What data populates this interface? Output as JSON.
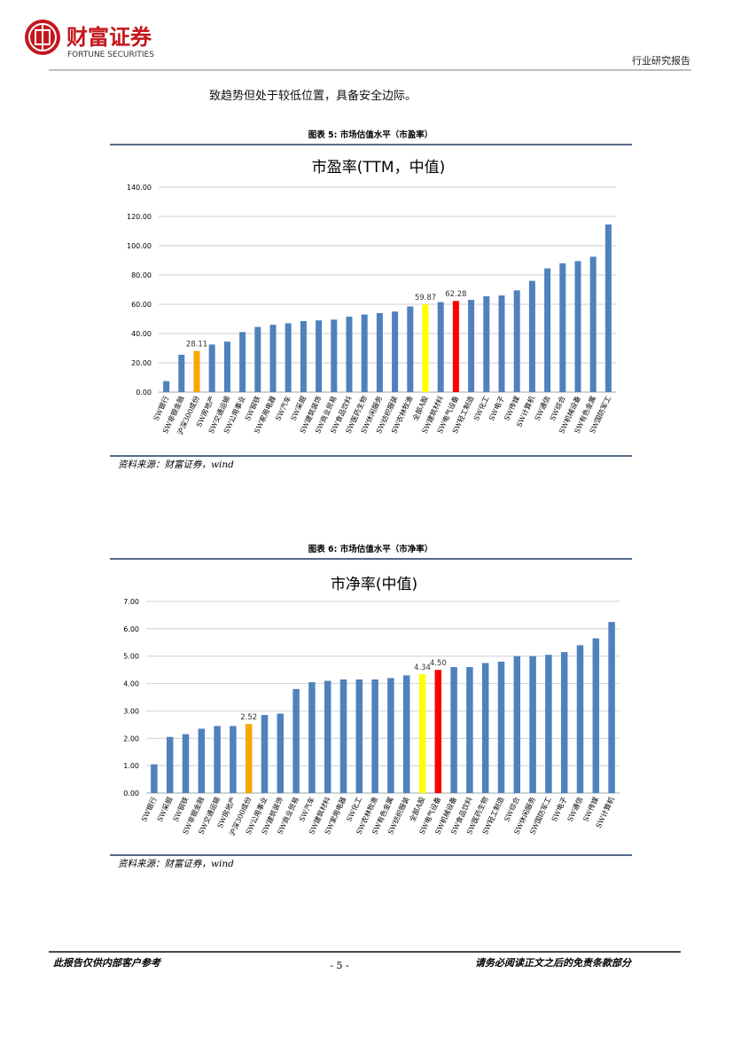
{
  "header": {
    "company": "财富证券",
    "company_en": "FORTUNE SECURITIES",
    "report_type": "行业研究报告"
  },
  "body": {
    "text": "致趋势但处于较低位置，具备安全边际。"
  },
  "figures": [
    {
      "caption": "图表 5:  市场估值水平（市盈率）",
      "source": "资料来源：财富证券，wind"
    },
    {
      "caption": "图表 6:  市场估值水平（市净率）",
      "source": "资料来源：财富证券，wind"
    }
  ],
  "chart_data": [
    {
      "type": "bar",
      "title": "市盈率(TTM，中值)",
      "categories": [
        "SW银行",
        "SW非银金融",
        "沪深300成份",
        "SW房地产",
        "SW交通运输",
        "SW公用事业",
        "SW钢铁",
        "SW家用电器",
        "SW汽车",
        "SW采掘",
        "SW建筑装饰",
        "SW商业贸易",
        "SW食品饮料",
        "SW医药生物",
        "SW休闲服务",
        "SW纺织服装",
        "SW农林牧渔",
        "全部A股",
        "SW建筑材料",
        "SW电气设备",
        "SW轻工制造",
        "SW化工",
        "SW电子",
        "SW传媒",
        "SW计算机",
        "SW通信",
        "SW综合",
        "SW机械设备",
        "SW有色金属",
        "SW国防军工"
      ],
      "values": [
        7.5,
        25.5,
        28.11,
        32.5,
        34.5,
        41,
        44.5,
        46,
        47,
        48.5,
        49,
        49.5,
        51.5,
        53,
        54,
        55,
        58.5,
        59.87,
        61.5,
        62.28,
        63,
        65.5,
        66,
        69.5,
        76,
        84.5,
        88,
        89.5,
        92.5,
        114.5
      ],
      "value_labels": [
        null,
        null,
        "28.11",
        null,
        null,
        null,
        null,
        null,
        null,
        null,
        null,
        null,
        null,
        null,
        null,
        null,
        null,
        "59.87",
        null,
        "62.28",
        null,
        null,
        null,
        null,
        null,
        null,
        null,
        null,
        null,
        null
      ],
      "colors": [
        "#4f81bd",
        "#4f81bd",
        "#f6a800",
        "#4f81bd",
        "#4f81bd",
        "#4f81bd",
        "#4f81bd",
        "#4f81bd",
        "#4f81bd",
        "#4f81bd",
        "#4f81bd",
        "#4f81bd",
        "#4f81bd",
        "#4f81bd",
        "#4f81bd",
        "#4f81bd",
        "#4f81bd",
        "#ffff00",
        "#4f81bd",
        "#ff0000",
        "#4f81bd",
        "#4f81bd",
        "#4f81bd",
        "#4f81bd",
        "#4f81bd",
        "#4f81bd",
        "#4f81bd",
        "#4f81bd",
        "#4f81bd",
        "#4f81bd"
      ],
      "ylim": [
        0,
        140
      ],
      "yticks": [
        {
          "value": 0,
          "label": "0.00"
        },
        {
          "value": 20,
          "label": "20.00"
        },
        {
          "value": 40,
          "label": "40.00"
        },
        {
          "value": 60,
          "label": "60.00"
        },
        {
          "value": 80,
          "label": "80.00"
        },
        {
          "value": 100,
          "label": "100.00"
        },
        {
          "value": 120,
          "label": "120.00"
        },
        {
          "value": 140,
          "label": "140.00"
        }
      ],
      "grid": true
    },
    {
      "type": "bar",
      "title": "市净率(中值)",
      "categories": [
        "SW银行",
        "SW采掘",
        "SW钢铁",
        "SW非银金融",
        "SW交通运输",
        "SW房地产",
        "沪深300成份",
        "SW公用事业",
        "SW建筑装饰",
        "SW商业贸易",
        "SW汽车",
        "SW建筑材料",
        "SW家用电器",
        "SW化工",
        "SW农林牧渔",
        "SW有色金属",
        "SW纺织服装",
        "全部A股",
        "SW电气设备",
        "SW机械设备",
        "SW食品饮料",
        "SW医药生物",
        "SW轻工制造",
        "SW综合",
        "SW休闲服务",
        "SW国防军工",
        "SW电子",
        "SW通信",
        "SW传媒",
        "SW计算机"
      ],
      "values": [
        1.05,
        2.05,
        2.15,
        2.35,
        2.45,
        2.45,
        2.52,
        2.85,
        2.9,
        3.8,
        4.05,
        4.1,
        4.15,
        4.15,
        4.15,
        4.2,
        4.3,
        4.34,
        4.5,
        4.6,
        4.6,
        4.75,
        4.8,
        5.0,
        5.0,
        5.05,
        5.15,
        5.4,
        5.65,
        6.25
      ],
      "value_labels": [
        null,
        null,
        null,
        null,
        null,
        null,
        "2.52",
        null,
        null,
        null,
        null,
        null,
        null,
        null,
        null,
        null,
        null,
        "4.34",
        "4.50",
        null,
        null,
        null,
        null,
        null,
        null,
        null,
        null,
        null,
        null,
        null
      ],
      "colors": [
        "#4f81bd",
        "#4f81bd",
        "#4f81bd",
        "#4f81bd",
        "#4f81bd",
        "#4f81bd",
        "#f6a800",
        "#4f81bd",
        "#4f81bd",
        "#4f81bd",
        "#4f81bd",
        "#4f81bd",
        "#4f81bd",
        "#4f81bd",
        "#4f81bd",
        "#4f81bd",
        "#4f81bd",
        "#ffff00",
        "#ff0000",
        "#4f81bd",
        "#4f81bd",
        "#4f81bd",
        "#4f81bd",
        "#4f81bd",
        "#4f81bd",
        "#4f81bd",
        "#4f81bd",
        "#4f81bd",
        "#4f81bd",
        "#4f81bd"
      ],
      "ylim": [
        0,
        7
      ],
      "yticks": [
        {
          "value": 0,
          "label": "0.00"
        },
        {
          "value": 1,
          "label": "1.00"
        },
        {
          "value": 2,
          "label": "2.00"
        },
        {
          "value": 3,
          "label": "3.00"
        },
        {
          "value": 4,
          "label": "4.00"
        },
        {
          "value": 5,
          "label": "5.00"
        },
        {
          "value": 6,
          "label": "6.00"
        },
        {
          "value": 7,
          "label": "7.00"
        }
      ],
      "grid": true
    }
  ],
  "footer": {
    "left": "此报告仅供内部客户参考",
    "page": "- 5 -",
    "right": "请务必阅读正文之后的免责条款部分"
  }
}
